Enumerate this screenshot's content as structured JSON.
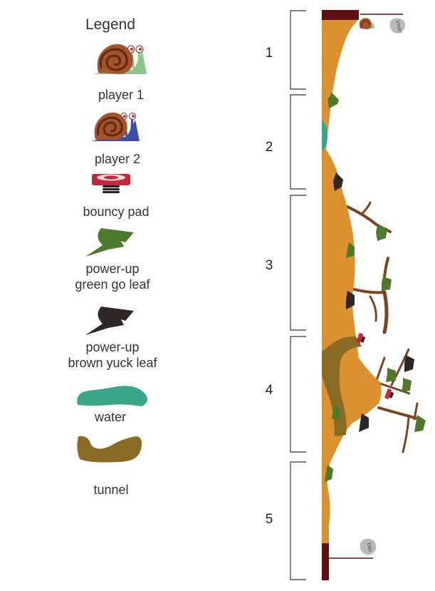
{
  "legend": {
    "title": "Legend",
    "player1": "player 1",
    "player2": "player 2",
    "bouncy_pad": "bouncy pad",
    "power_up_green_1": "power-up",
    "power_up_green_2": "green go leaf",
    "power_up_brown_1": "power-up",
    "power_up_brown_2": "brown yuck leaf",
    "water": "water",
    "tunnel": "tunnel"
  },
  "map": {
    "sections": [
      "1",
      "2",
      "3",
      "4",
      "5"
    ],
    "start_label": "START",
    "end_label": "END"
  },
  "colors": {
    "track": "#dc9131",
    "track_edge": "#5e0f0f",
    "leaf_green": "#4e7a2e",
    "leaf_brown": "#2f2626",
    "water": "#3aa58a",
    "tunnel": "#8a6b24",
    "branch": "#7a4520",
    "snail_shell": "#a4532a",
    "snail_body1": "#8cc48a",
    "snail_body2": "#3c4fa8",
    "pad_red": "#c4283a"
  }
}
